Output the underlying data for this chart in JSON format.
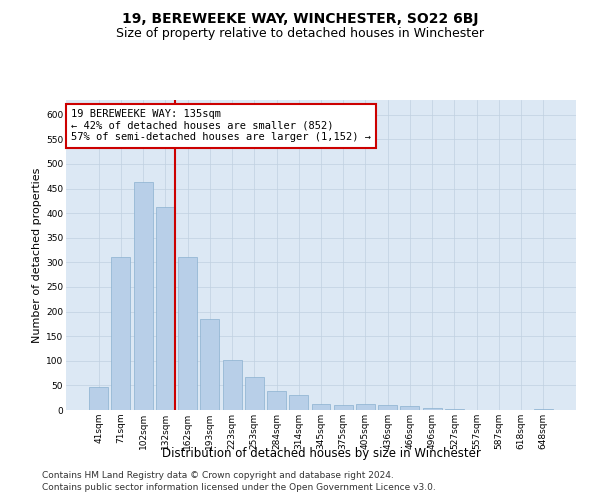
{
  "title": "19, BEREWEEKE WAY, WINCHESTER, SO22 6BJ",
  "subtitle": "Size of property relative to detached houses in Winchester",
  "xlabel": "Distribution of detached houses by size in Winchester",
  "ylabel": "Number of detached properties",
  "categories": [
    "41sqm",
    "71sqm",
    "102sqm",
    "132sqm",
    "162sqm",
    "193sqm",
    "223sqm",
    "253sqm",
    "284sqm",
    "314sqm",
    "345sqm",
    "375sqm",
    "405sqm",
    "436sqm",
    "466sqm",
    "496sqm",
    "527sqm",
    "557sqm",
    "587sqm",
    "618sqm",
    "648sqm"
  ],
  "values": [
    47,
    311,
    463,
    413,
    311,
    185,
    102,
    67,
    38,
    30,
    13,
    11,
    13,
    11,
    8,
    5,
    3,
    1,
    0,
    1,
    3
  ],
  "bar_color": "#b8cfe8",
  "bar_edge_color": "#8ab0d0",
  "vline_x_index": 3,
  "vline_color": "#cc0000",
  "annotation_text": "19 BEREWEEKE WAY: 135sqm\n← 42% of detached houses are smaller (852)\n57% of semi-detached houses are larger (1,152) →",
  "annotation_box_color": "#ffffff",
  "annotation_box_edge_color": "#cc0000",
  "ylim": [
    0,
    630
  ],
  "yticks": [
    0,
    50,
    100,
    150,
    200,
    250,
    300,
    350,
    400,
    450,
    500,
    550,
    600
  ],
  "grid_color": "#c0d0e0",
  "background_color": "#dce8f4",
  "footer_line1": "Contains HM Land Registry data © Crown copyright and database right 2024.",
  "footer_line2": "Contains public sector information licensed under the Open Government Licence v3.0.",
  "title_fontsize": 10,
  "subtitle_fontsize": 9,
  "xlabel_fontsize": 8.5,
  "ylabel_fontsize": 8,
  "tick_fontsize": 6.5,
  "annotation_fontsize": 7.5,
  "footer_fontsize": 6.5
}
